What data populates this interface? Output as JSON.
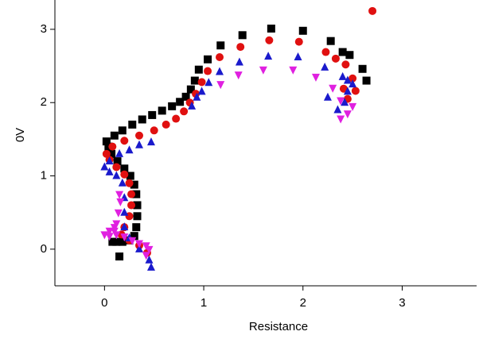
{
  "chart_data": {
    "type": "scatter",
    "x_label": "Resistance",
    "y_label": "0V",
    "xlim": [
      -0.5,
      3.75
    ],
    "ylim": [
      -0.5,
      3.4
    ],
    "xticks": [
      0,
      1,
      2,
      3
    ],
    "yticks": [
      0,
      1,
      2,
      3
    ],
    "series": [
      {
        "color": "#000000",
        "marker": "square",
        "x": [
          0.15,
          0.08,
          0.12,
          0.18,
          0.25,
          0.3,
          0.32,
          0.33,
          0.33,
          0.32,
          0.3,
          0.26,
          0.2,
          0.13,
          0.07,
          0.04,
          0.02,
          0.1,
          0.18,
          0.28,
          0.38,
          0.48,
          0.58,
          0.68,
          0.76,
          0.82,
          0.87,
          0.91,
          0.95,
          1.04,
          1.17,
          1.39,
          1.68,
          2.0,
          2.28,
          2.4,
          2.47,
          2.6,
          2.64
        ],
        "y": [
          -0.1,
          0.1,
          0.1,
          0.1,
          0.12,
          0.18,
          0.3,
          0.45,
          0.6,
          0.75,
          0.88,
          1.0,
          1.1,
          1.2,
          1.3,
          1.4,
          1.47,
          1.55,
          1.62,
          1.7,
          1.77,
          1.83,
          1.89,
          1.95,
          2.01,
          2.08,
          2.18,
          2.3,
          2.45,
          2.59,
          2.78,
          2.92,
          3.01,
          2.98,
          2.84,
          2.69,
          2.65,
          2.46,
          2.3
        ]
      },
      {
        "color": "#e01010",
        "marker": "circle",
        "x": [
          0.43,
          0.35,
          0.25,
          0.17,
          0.2,
          0.25,
          0.27,
          0.27,
          0.25,
          0.2,
          0.12,
          0.05,
          0.02,
          0.08,
          0.2,
          0.35,
          0.5,
          0.62,
          0.72,
          0.8,
          0.86,
          0.92,
          0.98,
          1.04,
          1.16,
          1.37,
          1.66,
          1.96,
          2.23,
          2.33,
          2.43,
          2.5,
          2.53,
          2.45,
          2.41,
          2.7
        ],
        "y": [
          -0.05,
          0.05,
          0.12,
          0.2,
          0.3,
          0.45,
          0.6,
          0.75,
          0.9,
          1.02,
          1.12,
          1.22,
          1.3,
          1.4,
          1.48,
          1.55,
          1.62,
          1.7,
          1.78,
          1.88,
          2.0,
          2.12,
          2.28,
          2.43,
          2.62,
          2.76,
          2.85,
          2.83,
          2.69,
          2.6,
          2.52,
          2.33,
          2.16,
          2.05,
          2.19,
          3.25
        ]
      },
      {
        "color": "#1a1acc",
        "marker": "triangle-up",
        "x": [
          0.47,
          0.45,
          0.35,
          0.25,
          0.2,
          0.2,
          0.2,
          0.18,
          0.12,
          0.05,
          0.0,
          0.05,
          0.15,
          0.25,
          0.35,
          0.47,
          0.88,
          0.93,
          0.98,
          1.05,
          1.16,
          1.36,
          1.65,
          1.95,
          2.22,
          2.25,
          2.35,
          2.42,
          2.45,
          2.5,
          2.45,
          2.4
        ],
        "y": [
          -0.25,
          -0.15,
          0.0,
          0.15,
          0.3,
          0.5,
          0.7,
          0.9,
          1.0,
          1.05,
          1.12,
          1.2,
          1.3,
          1.35,
          1.42,
          1.46,
          1.95,
          2.07,
          2.15,
          2.27,
          2.42,
          2.55,
          2.63,
          2.62,
          2.48,
          2.07,
          1.9,
          2.0,
          2.15,
          2.25,
          2.3,
          2.35
        ]
      },
      {
        "color": "#e020e0",
        "marker": "triangle-down",
        "x": [
          0.0,
          0.05,
          0.12,
          0.2,
          0.28,
          0.35,
          0.42,
          0.45,
          0.42,
          0.1,
          0.12,
          0.14,
          0.16,
          0.15,
          0.1,
          0.05,
          1.17,
          1.35,
          1.6,
          1.9,
          2.13,
          2.3,
          2.38,
          2.38,
          2.45,
          2.5
        ],
        "y": [
          0.2,
          0.18,
          0.2,
          0.17,
          0.12,
          0.08,
          0.05,
          0.0,
          -0.08,
          0.25,
          0.35,
          0.5,
          0.65,
          0.75,
          0.3,
          0.25,
          2.25,
          2.38,
          2.45,
          2.45,
          2.35,
          2.2,
          2.03,
          1.78,
          1.85,
          1.95
        ]
      }
    ]
  }
}
